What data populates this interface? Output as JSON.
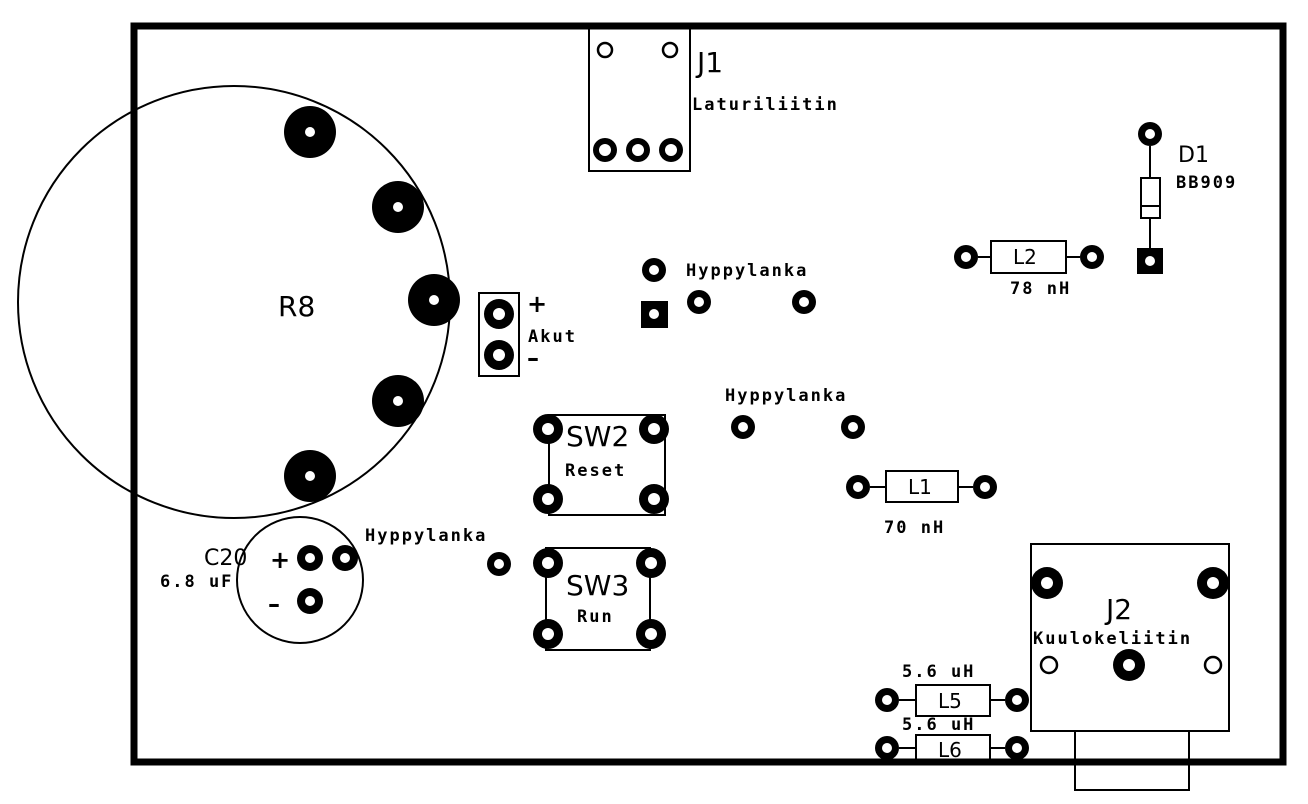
{
  "board": {
    "components": {
      "R8": {
        "ref": "R8"
      },
      "J1": {
        "ref": "J1",
        "label": "Laturiliitin"
      },
      "J2": {
        "ref": "J2",
        "label": "Kuulokeliitin"
      },
      "D1": {
        "ref": "D1",
        "value": "BB909"
      },
      "L1": {
        "ref": "L1",
        "value": "70 nH"
      },
      "L2": {
        "ref": "L2",
        "value": "78 nH"
      },
      "L5": {
        "ref": "L5",
        "value": "5.6 uH"
      },
      "L6": {
        "ref": "L6",
        "value": "5.6 uH"
      },
      "C20": {
        "ref": "C20",
        "value": "6.8 uF",
        "plus": "+",
        "minus": "–"
      },
      "SW2": {
        "ref": "SW2",
        "label": "Reset"
      },
      "SW3": {
        "ref": "SW3",
        "label": "Run"
      },
      "Akut": {
        "label": "Akut",
        "plus": "+",
        "minus": "–"
      }
    },
    "jumpers": [
      {
        "label": "Hyppylanka"
      },
      {
        "label": "Hyppylanka"
      },
      {
        "label": "Hyppylanka"
      }
    ]
  }
}
